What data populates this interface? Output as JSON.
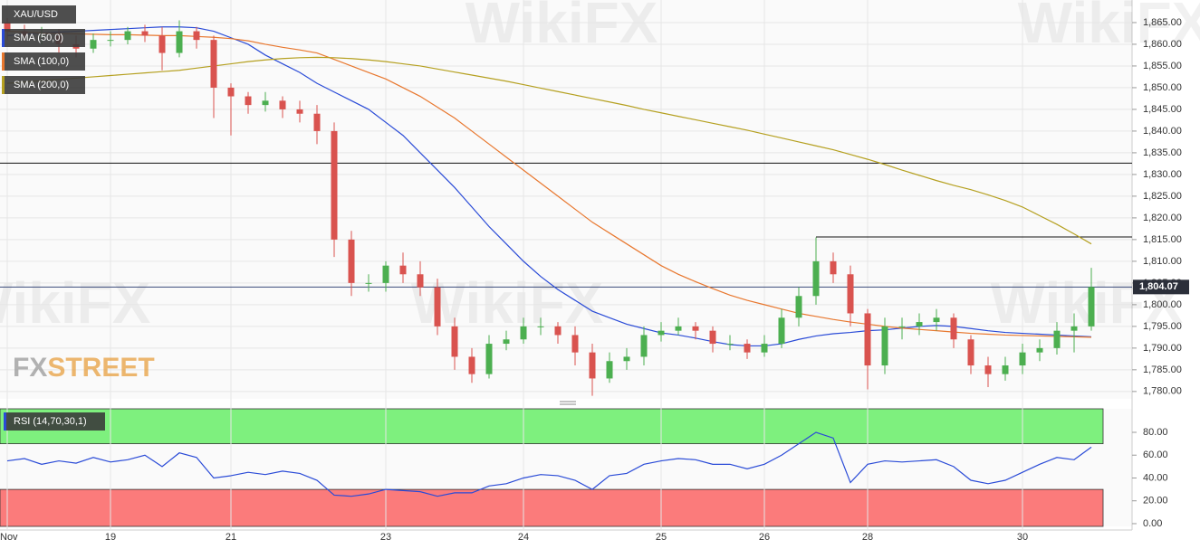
{
  "chart_data": {
    "type": "candlestick",
    "symbol": "XAU/USD",
    "categories": [
      "Nov",
      null,
      null,
      null,
      null,
      null,
      "19",
      null,
      null,
      null,
      null,
      null,
      null,
      "21",
      null,
      null,
      null,
      null,
      null,
      null,
      null,
      null,
      "23",
      null,
      null,
      null,
      null,
      null,
      null,
      null,
      "24",
      null,
      null,
      null,
      null,
      null,
      null,
      null,
      "25",
      null,
      null,
      null,
      null,
      null,
      "26",
      null,
      null,
      null,
      null,
      null,
      "28",
      null,
      null,
      null,
      null,
      null,
      null,
      null,
      null,
      "30",
      null,
      null,
      null,
      null
    ],
    "open": [
      1865,
      1863,
      1862,
      1862,
      1860,
      1859,
      1861,
      1861,
      1863,
      1862,
      1858,
      1863,
      1861,
      1850,
      1848,
      1846,
      1847,
      1845,
      1844,
      1840,
      1815,
      1805,
      1805,
      1809,
      1807,
      1804,
      1795,
      1788,
      1784,
      1791,
      1792,
      1795,
      1795,
      1793,
      1789,
      1783,
      1787,
      1788,
      1793,
      1794,
      1795,
      1794,
      1791,
      1791,
      1789,
      1791,
      1797,
      1802,
      1810,
      1807,
      1798,
      1786,
      1795,
      1795,
      1796,
      1797,
      1792,
      1786,
      1784,
      1786,
      1789,
      1790,
      1794,
      1795
    ],
    "high": [
      1866,
      1864.5,
      1864,
      1863.5,
      1862,
      1862.5,
      1863,
      1864,
      1864.5,
      1864,
      1865.5,
      1864,
      1862,
      1851,
      1849,
      1849,
      1848,
      1847,
      1846,
      1842,
      1817,
      1807,
      1810,
      1812,
      1810,
      1806,
      1797,
      1790,
      1793,
      1794,
      1797,
      1797,
      1796,
      1795,
      1791,
      1789,
      1790,
      1795,
      1796,
      1797,
      1796,
      1795,
      1793,
      1792,
      1793,
      1799,
      1804,
      1815.5,
      1812,
      1809,
      1799,
      1797,
      1797,
      1798,
      1799,
      1798,
      1793,
      1788,
      1788,
      1791,
      1792,
      1796,
      1798,
      1808.5
    ],
    "low": [
      1861,
      1860.5,
      1860,
      1858,
      1857,
      1858,
      1859.5,
      1860,
      1860.5,
      1854,
      1857,
      1859,
      1843,
      1839,
      1844,
      1844.5,
      1843,
      1842,
      1837,
      1811,
      1802,
      1803,
      1803,
      1805,
      1802,
      1793,
      1785,
      1782,
      1783,
      1789.5,
      1791,
      1793,
      1791,
      1786,
      1779,
      1782,
      1785,
      1786,
      1791.5,
      1793,
      1792,
      1789,
      1789.5,
      1787.5,
      1788,
      1790,
      1795,
      1800,
      1805,
      1795,
      1780.5,
      1784,
      1792,
      1793,
      1794,
      1790,
      1784,
      1781,
      1782.5,
      1784,
      1787,
      1788.5,
      1789,
      1794
    ],
    "close": [
      1863,
      1862,
      1862,
      1860,
      1859,
      1861,
      1861,
      1863,
      1862,
      1858,
      1863,
      1861,
      1850,
      1848,
      1846,
      1847,
      1845,
      1844,
      1840,
      1815,
      1805,
      1805,
      1809,
      1807,
      1804,
      1795,
      1788,
      1784,
      1791,
      1792,
      1795,
      1795,
      1793,
      1789,
      1783,
      1787,
      1788,
      1793,
      1794,
      1795,
      1794,
      1791,
      1791,
      1789,
      1791,
      1797,
      1802,
      1810,
      1807,
      1798,
      1786,
      1795,
      1795,
      1796,
      1797,
      1792,
      1786,
      1784,
      1786,
      1789,
      1790,
      1794,
      1795,
      1804.07
    ],
    "up_color": "#4caf50",
    "down_color": "#d9534f",
    "ylim": [
      1778.3,
      1870.2
    ],
    "yticks": [
      {
        "value": 1780,
        "label": "1,780.00"
      },
      {
        "value": 1785,
        "label": "1,785.00"
      },
      {
        "value": 1790,
        "label": "1,790.00"
      },
      {
        "value": 1795,
        "label": "1,795.00"
      },
      {
        "value": 1800,
        "label": "1,800.00"
      },
      {
        "value": 1805,
        "label": "1,805.00"
      },
      {
        "value": 1810,
        "label": "1,810.00"
      },
      {
        "value": 1815,
        "label": "1,815.00"
      },
      {
        "value": 1820,
        "label": "1,820.00"
      },
      {
        "value": 1825,
        "label": "1,825.00"
      },
      {
        "value": 1830,
        "label": "1,830.00"
      },
      {
        "value": 1835,
        "label": "1,835.00"
      },
      {
        "value": 1840,
        "label": "1,840.00"
      },
      {
        "value": 1845,
        "label": "1,845.00"
      },
      {
        "value": 1850,
        "label": "1,850.00"
      },
      {
        "value": 1855,
        "label": "1,855.00"
      },
      {
        "value": 1860,
        "label": "1,860.00"
      },
      {
        "value": 1865,
        "label": "1,865.00"
      }
    ],
    "grid": true,
    "series": [
      {
        "name": "SMA (50,0)",
        "color": "#2a4bd7",
        "values": [
          1862,
          1862.3,
          1862.6,
          1862.8,
          1863,
          1863.2,
          1863.4,
          1863.6,
          1863.8,
          1864,
          1864,
          1863.8,
          1863,
          1861.5,
          1860,
          1857.5,
          1855.5,
          1853.5,
          1851,
          1849,
          1847,
          1845,
          1842,
          1839,
          1835,
          1831,
          1827,
          1822.5,
          1818,
          1814,
          1810,
          1806.5,
          1803.5,
          1801,
          1798.5,
          1797,
          1795.5,
          1794.5,
          1793.5,
          1793,
          1792.3,
          1791.5,
          1790.8,
          1790.5,
          1790.5,
          1791,
          1792,
          1792.8,
          1793.3,
          1793.6,
          1794,
          1794.2,
          1794.6,
          1795,
          1795.2,
          1795,
          1794.5,
          1794,
          1793.6,
          1793.4,
          1793.2,
          1793,
          1792.8,
          1792.6
        ]
      },
      {
        "name": "SMA (100,0)",
        "color": "#e8772e",
        "values": [
          1863,
          1862.8,
          1862.6,
          1862.5,
          1862.4,
          1862.3,
          1862.2,
          1862.2,
          1862.1,
          1862,
          1862,
          1861.8,
          1861.6,
          1861.3,
          1860.8,
          1860,
          1859.3,
          1858.7,
          1858,
          1856.5,
          1855,
          1853.5,
          1852,
          1850,
          1848,
          1845.5,
          1843,
          1840,
          1837,
          1834,
          1831,
          1828,
          1825,
          1822,
          1819,
          1816.5,
          1814,
          1811.5,
          1809,
          1807,
          1805.3,
          1803.7,
          1802.2,
          1801,
          1800,
          1799,
          1798,
          1797.3,
          1796.6,
          1796,
          1795.5,
          1795,
          1794.6,
          1794.3,
          1794,
          1793.7,
          1793.4,
          1793.2,
          1793,
          1792.9,
          1792.8,
          1792.7,
          1792.6,
          1792.5
        ]
      },
      {
        "name": "SMA (200,0)",
        "color": "#b5a020",
        "values": [
          1851,
          1851.3,
          1851.6,
          1851.9,
          1852.2,
          1852.5,
          1852.8,
          1853.1,
          1853.4,
          1853.7,
          1854,
          1854.5,
          1855,
          1855.5,
          1856,
          1856.4,
          1856.7,
          1856.9,
          1857,
          1856.9,
          1856.7,
          1856.4,
          1856,
          1855.5,
          1855,
          1854.3,
          1853.6,
          1852.9,
          1852.2,
          1851.5,
          1850.7,
          1849.9,
          1849.1,
          1848.3,
          1847.5,
          1846.7,
          1845.9,
          1845,
          1844.2,
          1843.4,
          1842.6,
          1841.8,
          1841,
          1840.2,
          1839.3,
          1838.4,
          1837.5,
          1836.6,
          1835.7,
          1834.6,
          1833.5,
          1832.3,
          1831,
          1829.8,
          1828.6,
          1827.5,
          1826.5,
          1825.3,
          1824,
          1822.5,
          1820.5,
          1818.5,
          1816.3,
          1814
        ]
      }
    ],
    "levels": [
      {
        "value": 1832.6
      },
      {
        "value": 1815.6,
        "start": 47
      }
    ],
    "last_price": {
      "value": 1804.07,
      "label": "1,804.07"
    },
    "watermark": [
      "FX",
      "STREET"
    ],
    "overlay_text": "WikiFX",
    "indicator": {
      "type": "line",
      "name": "RSI (14,70,30,1)",
      "color": "#2a4bd7",
      "values": [
        55,
        57,
        52,
        55,
        53,
        58,
        54,
        56,
        60,
        50,
        62,
        58,
        40,
        42,
        45,
        43,
        46,
        44,
        38,
        25,
        24,
        26,
        30,
        29,
        28,
        24,
        27,
        27,
        33,
        35,
        40,
        43,
        42,
        38,
        30,
        42,
        44,
        52,
        55,
        57,
        56,
        52,
        52,
        48,
        52,
        60,
        70,
        80,
        75,
        36,
        52,
        55,
        54,
        55,
        56,
        50,
        38,
        35,
        38,
        45,
        52,
        58,
        56,
        67
      ],
      "upper": 70,
      "lower": 30,
      "upper_color": "#7ef07e",
      "lower_color": "#fb7b7b",
      "ylim": [
        -2.4,
        100.6
      ],
      "yticks": [
        {
          "value": 0,
          "label": "0.00"
        },
        {
          "value": 20,
          "label": "20.00"
        },
        {
          "value": 40,
          "label": "40.00"
        },
        {
          "value": 60,
          "label": "60.00"
        },
        {
          "value": 80,
          "label": "80.00"
        }
      ]
    }
  }
}
